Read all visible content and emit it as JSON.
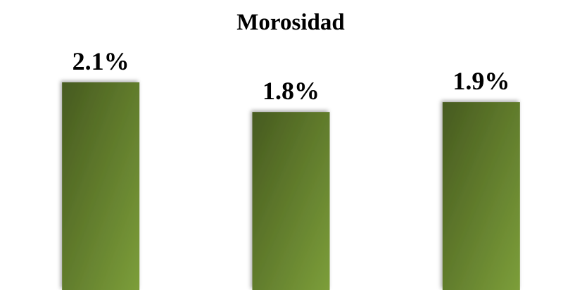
{
  "chart_data": {
    "type": "bar",
    "title": "Morosidad",
    "categories": [
      null,
      null,
      null
    ],
    "values": [
      2.1,
      1.8,
      1.9
    ],
    "value_labels": [
      "2.1%",
      "1.8%",
      "1.9%"
    ],
    "color": "#647f2e"
  }
}
